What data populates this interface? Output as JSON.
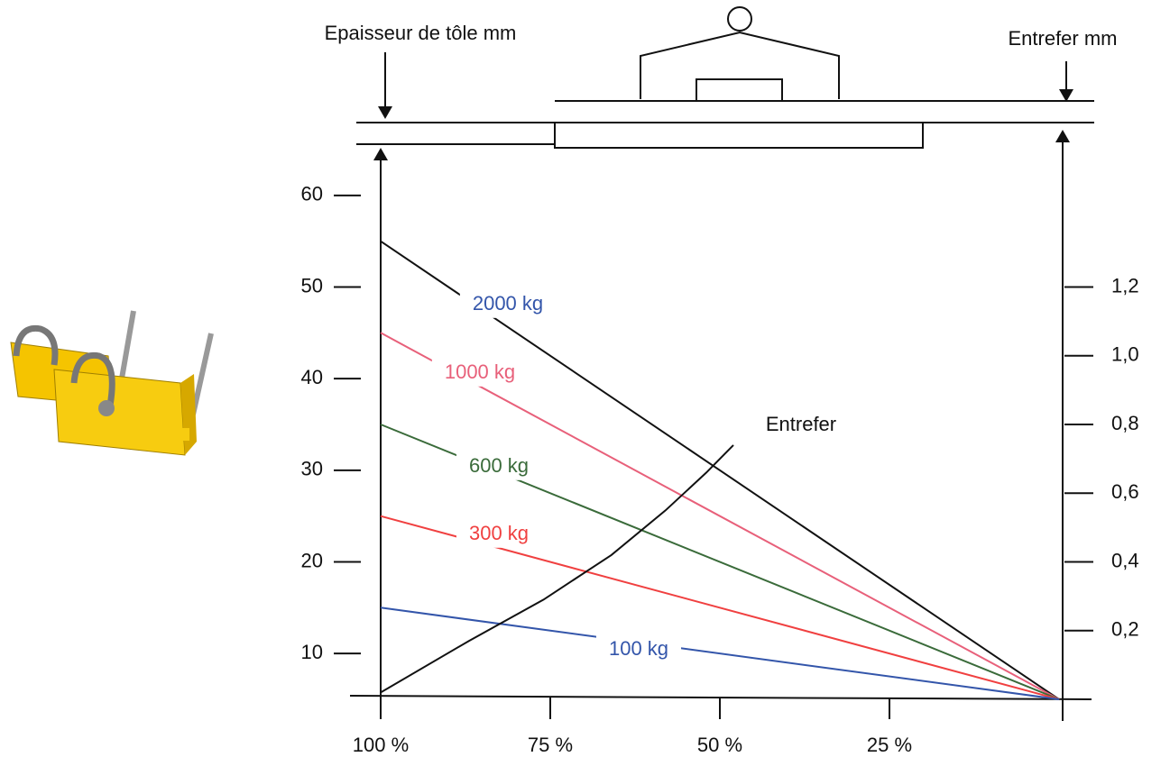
{
  "chart_data": {
    "type": "line",
    "y_label": "Epaisseur de tôle mm",
    "y2_label": "Entrefer mm",
    "xlim": [
      100,
      0
    ],
    "xticks": [
      {
        "value": 100,
        "label": "100 %"
      },
      {
        "value": 75,
        "label": "75 %"
      },
      {
        "value": 50,
        "label": "50 %"
      },
      {
        "value": 25,
        "label": "25 %"
      }
    ],
    "ylim": [
      5,
      65
    ],
    "yticks": [
      10,
      20,
      30,
      40,
      50,
      60
    ],
    "y2lim": [
      0,
      1.6
    ],
    "y2ticks": [
      {
        "value": 0.2,
        "label": "0,2"
      },
      {
        "value": 0.4,
        "label": "0,4"
      },
      {
        "value": 0.6,
        "label": "0,6"
      },
      {
        "value": 0.8,
        "label": "0,8"
      },
      {
        "value": 1.0,
        "label": "1,0"
      },
      {
        "value": 1.2,
        "label": "1,2"
      }
    ],
    "series": [
      {
        "name": "2000 kg",
        "color": "#111111",
        "x": [
          100,
          0
        ],
        "values": [
          55,
          5
        ]
      },
      {
        "name": "1000 kg",
        "color": "#e8607a",
        "x": [
          100,
          0
        ],
        "values": [
          45,
          5
        ]
      },
      {
        "name": "600 kg",
        "color": "#3a6b3a",
        "x": [
          100,
          0
        ],
        "values": [
          35,
          5
        ]
      },
      {
        "name": "300 kg",
        "color": "#f04040",
        "x": [
          100,
          0
        ],
        "values": [
          25,
          5
        ]
      },
      {
        "name": "100 kg",
        "color": "#3355aa",
        "x": [
          100,
          0
        ],
        "values": [
          15,
          5
        ]
      },
      {
        "name": "Entrefer",
        "color": "#111111",
        "axis": "y2",
        "x": [
          100,
          87,
          76,
          66,
          58,
          52,
          48
        ],
        "values": [
          0.02,
          0.17,
          0.29,
          0.42,
          0.55,
          0.66,
          0.74
        ]
      }
    ]
  }
}
